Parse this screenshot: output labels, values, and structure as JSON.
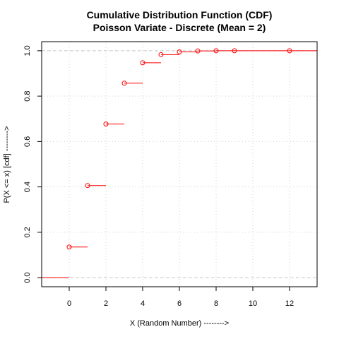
{
  "chart_data": {
    "type": "step",
    "title": "Cumulative Distribution Function (CDF)",
    "subtitle": "Poisson Variate - Discrete (Mean = 2)",
    "xlabel": "X (Random Number) -------->",
    "ylabel": "P(X <= x)  [cdf] -------->",
    "xlim": [
      -1.5,
      13.5
    ],
    "ylim": [
      -0.04,
      1.04
    ],
    "x_ticks": [
      0,
      2,
      4,
      6,
      8,
      10,
      12
    ],
    "y_ticks": [
      0.0,
      0.2,
      0.4,
      0.6,
      0.8,
      1.0
    ],
    "x_tick_labels": [
      "0",
      "2",
      "4",
      "6",
      "8",
      "10",
      "12"
    ],
    "y_tick_labels": [
      "0.0",
      "0.2",
      "0.4",
      "0.6",
      "0.8",
      "1.0"
    ],
    "grid": true,
    "reference_lines_y": [
      0,
      1
    ],
    "series": [
      {
        "x": [
          0,
          1,
          2,
          3,
          4,
          5,
          6,
          7,
          8,
          9,
          12
        ],
        "y": [
          0.135,
          0.406,
          0.677,
          0.857,
          0.947,
          0.983,
          0.995,
          0.999,
          1.0,
          1.0,
          1.0
        ],
        "color": "#ff0000"
      }
    ],
    "colors": {
      "series": "#ff0000",
      "grid": "#d3d3d3",
      "reference": "#c8c8c8",
      "axis": "#000000"
    }
  }
}
